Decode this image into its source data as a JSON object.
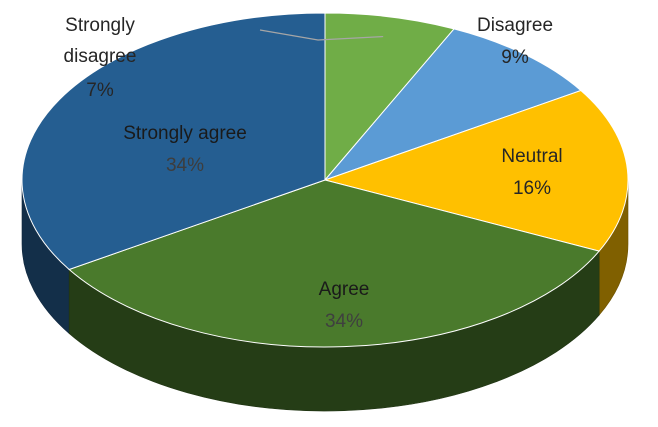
{
  "chart_data": {
    "type": "pie",
    "style": "3d",
    "categories": [
      "Strongly disagree",
      "Disagree",
      "Neutral",
      "Agree",
      "Strongly agree"
    ],
    "values": [
      7,
      9,
      16,
      34,
      34
    ],
    "value_labels": [
      "7%",
      "9%",
      "16%",
      "34%",
      "34%"
    ],
    "unit": "%",
    "colors": [
      "#70ad47",
      "#5b9bd5",
      "#ffc000",
      "#4a7a2c",
      "#255e91"
    ],
    "legend": "none",
    "title": ""
  }
}
